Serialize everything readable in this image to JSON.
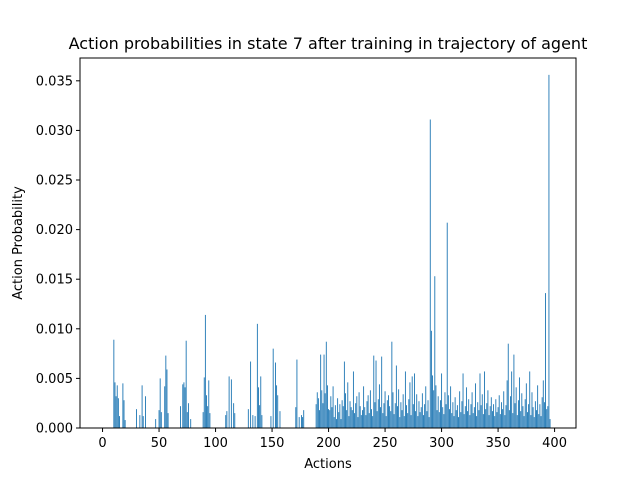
{
  "chart_data": {
    "type": "bar",
    "title": "Action probabilities in state 7 after training in trajectory of agent",
    "xlabel": "Actions",
    "ylabel": "Action Probability",
    "xlim": [
      -19.95,
      418.95
    ],
    "ylim": [
      0,
      0.0373
    ],
    "xticks": [
      0,
      50,
      100,
      150,
      200,
      250,
      300,
      350,
      400
    ],
    "yticks": [
      0.0,
      0.005,
      0.01,
      0.015,
      0.02,
      0.025,
      0.03,
      0.035
    ],
    "ytick_labels": [
      "0.000",
      "0.005",
      "0.010",
      "0.015",
      "0.020",
      "0.025",
      "0.030",
      "0.035"
    ],
    "grid": false,
    "color": "#1f77b4",
    "n_actions": 400,
    "values_sparse": [
      [
        10,
        0.0089
      ],
      [
        11,
        0.0046
      ],
      [
        12,
        0.0032
      ],
      [
        13,
        0.0043
      ],
      [
        14,
        0.003
      ],
      [
        15,
        0.0012
      ],
      [
        18,
        0.0045
      ],
      [
        19,
        0.0028
      ],
      [
        20,
        0.0008
      ],
      [
        30,
        0.0019
      ],
      [
        33,
        0.0013
      ],
      [
        35,
        0.0043
      ],
      [
        36,
        0.0012
      ],
      [
        38,
        0.0032
      ],
      [
        47,
        0.0009
      ],
      [
        50,
        0.0018
      ],
      [
        51,
        0.005
      ],
      [
        52,
        0.0016
      ],
      [
        55,
        0.0042
      ],
      [
        56,
        0.0073
      ],
      [
        57,
        0.0059
      ],
      [
        58,
        0.0015
      ],
      [
        69,
        0.0022
      ],
      [
        71,
        0.0044
      ],
      [
        72,
        0.0046
      ],
      [
        73,
        0.0041
      ],
      [
        74,
        0.0088
      ],
      [
        75,
        0.0016
      ],
      [
        76,
        0.0025
      ],
      [
        78,
        0.0009
      ],
      [
        89,
        0.0016
      ],
      [
        90,
        0.0051
      ],
      [
        91,
        0.0114
      ],
      [
        92,
        0.0033
      ],
      [
        93,
        0.0022
      ],
      [
        94,
        0.0048
      ],
      [
        95,
        0.0015
      ],
      [
        109,
        0.0013
      ],
      [
        110,
        0.0017
      ],
      [
        112,
        0.0052
      ],
      [
        114,
        0.0049
      ],
      [
        116,
        0.0025
      ],
      [
        117,
        0.0015
      ],
      [
        129,
        0.0019
      ],
      [
        131,
        0.0067
      ],
      [
        133,
        0.0013
      ],
      [
        135,
        0.0012
      ],
      [
        137,
        0.0105
      ],
      [
        138,
        0.0041
      ],
      [
        139,
        0.0023
      ],
      [
        140,
        0.0052
      ],
      [
        141,
        0.0013
      ],
      [
        149,
        0.0012
      ],
      [
        151,
        0.008
      ],
      [
        153,
        0.0066
      ],
      [
        154,
        0.0043
      ],
      [
        155,
        0.0033
      ],
      [
        157,
        0.0017
      ],
      [
        171,
        0.0021
      ],
      [
        172,
        0.0069
      ],
      [
        174,
        0.0011
      ],
      [
        176,
        0.0013
      ],
      [
        177,
        0.0011
      ],
      [
        178,
        0.0018
      ],
      [
        189,
        0.0024
      ],
      [
        190,
        0.0036
      ],
      [
        191,
        0.003
      ],
      [
        192,
        0.0018
      ],
      [
        193,
        0.0074
      ],
      [
        194,
        0.0038
      ],
      [
        195,
        0.0025
      ],
      [
        196,
        0.0074
      ],
      [
        197,
        0.0035
      ],
      [
        198,
        0.0087
      ],
      [
        199,
        0.0043
      ],
      [
        200,
        0.0019
      ],
      [
        201,
        0.0018
      ],
      [
        202,
        0.0032
      ],
      [
        203,
        0.0021
      ],
      [
        204,
        0.0042
      ],
      [
        205,
        0.0011
      ],
      [
        206,
        0.0023
      ],
      [
        207,
        0.0009
      ],
      [
        208,
        0.003
      ],
      [
        209,
        0.0016
      ],
      [
        210,
        0.0024
      ],
      [
        211,
        0.0009
      ],
      [
        212,
        0.0028
      ],
      [
        213,
        0.0022
      ],
      [
        214,
        0.0067
      ],
      [
        215,
        0.0035
      ],
      [
        216,
        0.0018
      ],
      [
        217,
        0.0046
      ],
      [
        218,
        0.0012
      ],
      [
        219,
        0.0027
      ],
      [
        220,
        0.0021
      ],
      [
        221,
        0.0018
      ],
      [
        222,
        0.0057
      ],
      [
        223,
        0.0015
      ],
      [
        224,
        0.0025
      ],
      [
        225,
        0.0032
      ],
      [
        226,
        0.0011
      ],
      [
        227,
        0.0036
      ],
      [
        228,
        0.0022
      ],
      [
        229,
        0.0013
      ],
      [
        230,
        0.0018
      ],
      [
        231,
        0.0042
      ],
      [
        232,
        0.0021
      ],
      [
        233,
        0.0013
      ],
      [
        234,
        0.0027
      ],
      [
        235,
        0.0033
      ],
      [
        236,
        0.0015
      ],
      [
        237,
        0.0038
      ],
      [
        238,
        0.0019
      ],
      [
        239,
        0.0012
      ],
      [
        240,
        0.0073
      ],
      [
        241,
        0.0026
      ],
      [
        242,
        0.0068
      ],
      [
        243,
        0.0017
      ],
      [
        244,
        0.0029
      ],
      [
        245,
        0.0044
      ],
      [
        246,
        0.0021
      ],
      [
        247,
        0.0072
      ],
      [
        248,
        0.0015
      ],
      [
        249,
        0.0025
      ],
      [
        250,
        0.0037
      ],
      [
        251,
        0.0012
      ],
      [
        252,
        0.0028
      ],
      [
        253,
        0.0033
      ],
      [
        254,
        0.0022
      ],
      [
        255,
        0.0017
      ],
      [
        256,
        0.0087
      ],
      [
        257,
        0.0036
      ],
      [
        258,
        0.0014
      ],
      [
        259,
        0.0025
      ],
      [
        260,
        0.0063
      ],
      [
        261,
        0.0022
      ],
      [
        262,
        0.0039
      ],
      [
        263,
        0.0011
      ],
      [
        264,
        0.0026
      ],
      [
        265,
        0.0018
      ],
      [
        266,
        0.0034
      ],
      [
        267,
        0.0012
      ],
      [
        268,
        0.0057
      ],
      [
        269,
        0.0023
      ],
      [
        270,
        0.0015
      ],
      [
        271,
        0.0029
      ],
      [
        272,
        0.0046
      ],
      [
        273,
        0.0013
      ],
      [
        274,
        0.0052
      ],
      [
        275,
        0.0024
      ],
      [
        276,
        0.0055
      ],
      [
        277,
        0.0017
      ],
      [
        278,
        0.0034
      ],
      [
        279,
        0.0012
      ],
      [
        280,
        0.0027
      ],
      [
        281,
        0.0016
      ],
      [
        282,
        0.0021
      ],
      [
        283,
        0.0035
      ],
      [
        284,
        0.0013
      ],
      [
        285,
        0.0024
      ],
      [
        286,
        0.0042
      ],
      [
        287,
        0.0017
      ],
      [
        288,
        0.0028
      ],
      [
        289,
        0.0011
      ],
      [
        290,
        0.0311
      ],
      [
        291,
        0.0098
      ],
      [
        292,
        0.0053
      ],
      [
        293,
        0.0038
      ],
      [
        294,
        0.0153
      ],
      [
        295,
        0.0043
      ],
      [
        296,
        0.0018
      ],
      [
        297,
        0.0032
      ],
      [
        298,
        0.0016
      ],
      [
        299,
        0.0028
      ],
      [
        300,
        0.0055
      ],
      [
        301,
        0.0021
      ],
      [
        302,
        0.0014
      ],
      [
        303,
        0.0036
      ],
      [
        304,
        0.0024
      ],
      [
        305,
        0.0207
      ],
      [
        306,
        0.0033
      ],
      [
        307,
        0.0019
      ],
      [
        308,
        0.0042
      ],
      [
        309,
        0.0015
      ],
      [
        310,
        0.0026
      ],
      [
        311,
        0.0012
      ],
      [
        312,
        0.0031
      ],
      [
        313,
        0.0018
      ],
      [
        314,
        0.0023
      ],
      [
        315,
        0.0011
      ],
      [
        316,
        0.0037
      ],
      [
        317,
        0.0016
      ],
      [
        318,
        0.0027
      ],
      [
        319,
        0.0055
      ],
      [
        320,
        0.0014
      ],
      [
        321,
        0.0022
      ],
      [
        322,
        0.0041
      ],
      [
        323,
        0.0017
      ],
      [
        324,
        0.0029
      ],
      [
        325,
        0.0013
      ],
      [
        326,
        0.0024
      ],
      [
        327,
        0.0036
      ],
      [
        328,
        0.0015
      ],
      [
        329,
        0.0021
      ],
      [
        330,
        0.0045
      ],
      [
        331,
        0.0012
      ],
      [
        332,
        0.0026
      ],
      [
        333,
        0.0018
      ],
      [
        334,
        0.0055
      ],
      [
        335,
        0.0023
      ],
      [
        336,
        0.0034
      ],
      [
        337,
        0.0014
      ],
      [
        338,
        0.0057
      ],
      [
        339,
        0.0019
      ],
      [
        340,
        0.0025
      ],
      [
        341,
        0.0038
      ],
      [
        342,
        0.0013
      ],
      [
        343,
        0.0022
      ],
      [
        344,
        0.0031
      ],
      [
        345,
        0.0017
      ],
      [
        346,
        0.0024
      ],
      [
        347,
        0.0012
      ],
      [
        348,
        0.0029
      ],
      [
        349,
        0.0016
      ],
      [
        350,
        0.0021
      ],
      [
        351,
        0.0033
      ],
      [
        352,
        0.0014
      ],
      [
        353,
        0.0026
      ],
      [
        354,
        0.0019
      ],
      [
        355,
        0.0037
      ],
      [
        356,
        0.0013
      ],
      [
        357,
        0.0023
      ],
      [
        358,
        0.0048
      ],
      [
        359,
        0.0085
      ],
      [
        360,
        0.0018
      ],
      [
        361,
        0.0032
      ],
      [
        362,
        0.0057
      ],
      [
        363,
        0.0015
      ],
      [
        364,
        0.0074
      ],
      [
        365,
        0.0025
      ],
      [
        366,
        0.0041
      ],
      [
        367,
        0.0013
      ],
      [
        368,
        0.0028
      ],
      [
        369,
        0.0051
      ],
      [
        370,
        0.0017
      ],
      [
        371,
        0.0035
      ],
      [
        372,
        0.0022
      ],
      [
        373,
        0.0012
      ],
      [
        374,
        0.0029
      ],
      [
        375,
        0.0045
      ],
      [
        376,
        0.0016
      ],
      [
        377,
        0.0024
      ],
      [
        378,
        0.0057
      ],
      [
        379,
        0.0013
      ],
      [
        380,
        0.0036
      ],
      [
        381,
        0.0021
      ],
      [
        382,
        0.0011
      ],
      [
        383,
        0.0027
      ],
      [
        384,
        0.0018
      ],
      [
        385,
        0.0043
      ],
      [
        386,
        0.0014
      ],
      [
        387,
        0.0024
      ],
      [
        388,
        0.0012
      ],
      [
        389,
        0.0031
      ],
      [
        390,
        0.0048
      ],
      [
        391,
        0.0026
      ],
      [
        392,
        0.0136
      ],
      [
        393,
        0.0019
      ],
      [
        394,
        0.0022
      ],
      [
        395,
        0.0356
      ],
      [
        396,
        0.0009
      ]
    ]
  }
}
